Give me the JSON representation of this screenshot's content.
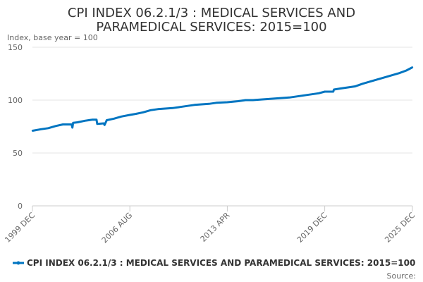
{
  "chart_data": {
    "type": "line",
    "title": "CPI INDEX 06.2.1/3 : MEDICAL SERVICES AND PARAMEDICAL SERVICES: 2015=100",
    "title_lines": [
      "CPI INDEX 06.2.1/3 : MEDICAL SERVICES AND",
      "PARAMEDICAL SERVICES: 2015=100"
    ],
    "ylabel": "Index, base year = 100",
    "xlabel": "",
    "ylim": [
      0,
      150
    ],
    "yticks": [
      0,
      50,
      100,
      150
    ],
    "xlim": [
      1999.917,
      2025.917
    ],
    "xticks": [
      {
        "value": 1999.917,
        "label": "1999 DEC"
      },
      {
        "value": 2006.583,
        "label": "2006 AUG"
      },
      {
        "value": 2013.25,
        "label": "2013 APR"
      },
      {
        "value": 2019.917,
        "label": "2019 DEC"
      },
      {
        "value": 2025.917,
        "label": "2025 DEC"
      }
    ],
    "grid": true,
    "series": [
      {
        "name": "CPI INDEX 06.2.1/3 : MEDICAL SERVICES AND PARAMEDICAL SERVICES: 2015=100",
        "color": "#0075c1",
        "x": [
          1999.917,
          2000.5,
          2001.0,
          2001.5,
          2002.0,
          2002.4,
          2002.6,
          2002.65,
          2002.7,
          2003.0,
          2003.5,
          2004.0,
          2004.3,
          2004.35,
          2004.8,
          2004.85,
          2005.0,
          2005.5,
          2006.0,
          2006.583,
          2007.0,
          2007.5,
          2008.0,
          2008.5,
          2009.0,
          2009.5,
          2010.0,
          2010.5,
          2011.0,
          2011.5,
          2012.0,
          2012.5,
          2013.25,
          2014.0,
          2014.5,
          2015.0,
          2015.5,
          2016.0,
          2016.5,
          2017.0,
          2017.5,
          2018.0,
          2018.5,
          2019.0,
          2019.5,
          2019.917,
          2020.2,
          2020.5,
          2020.55,
          2021.0,
          2021.5,
          2022.0,
          2022.5,
          2023.0,
          2023.5,
          2024.0,
          2024.5,
          2025.0,
          2025.5,
          2025.917
        ],
        "values": [
          71,
          72.5,
          73.5,
          75.5,
          77,
          77,
          77,
          74,
          78.5,
          79,
          80.5,
          81.5,
          81.5,
          77.5,
          78,
          76.5,
          81,
          82.5,
          84.5,
          86,
          87,
          88.5,
          90.5,
          91.5,
          92,
          92.5,
          93.5,
          94.5,
          95.5,
          96,
          96.5,
          97.5,
          98,
          99,
          100,
          100,
          100.5,
          101,
          101.5,
          102,
          102.5,
          103.5,
          104.5,
          105.5,
          106.5,
          108,
          108,
          108,
          110,
          111,
          112,
          113,
          115.5,
          117.5,
          119.5,
          121.5,
          123.5,
          125.5,
          128,
          131
        ]
      }
    ],
    "legend_position": "bottom-left",
    "source_label": "Source:"
  }
}
